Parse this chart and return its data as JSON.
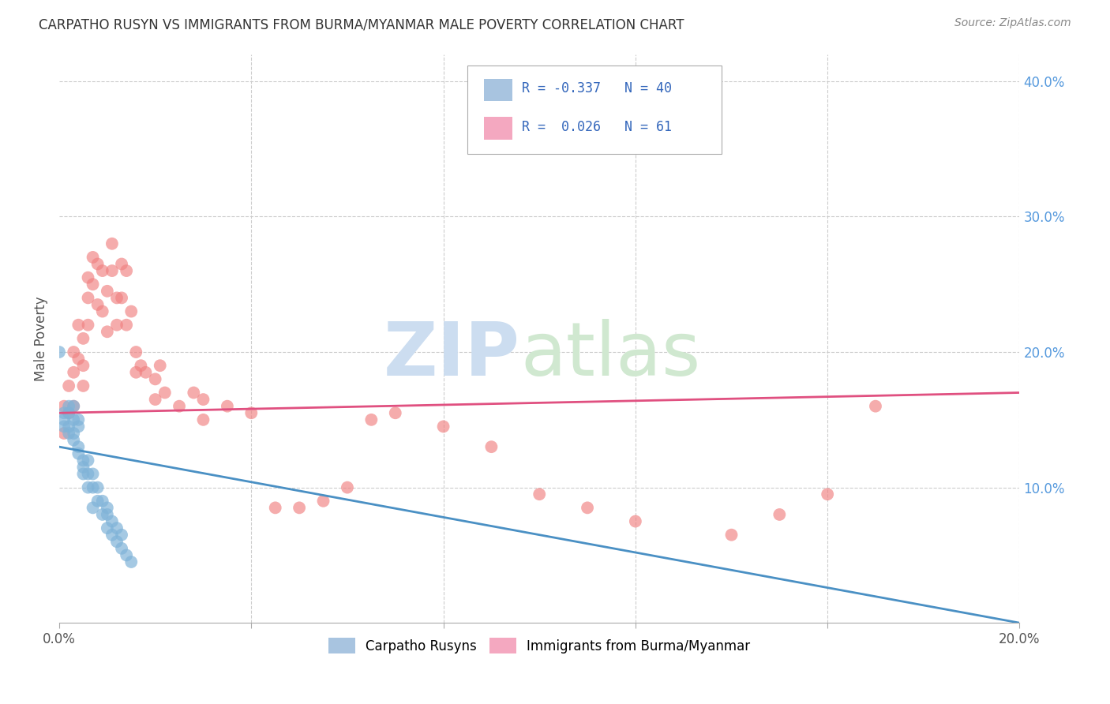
{
  "title": "CARPATHO RUSYN VS IMMIGRANTS FROM BURMA/MYANMAR MALE POVERTY CORRELATION CHART",
  "source": "Source: ZipAtlas.com",
  "ylabel": "Male Poverty",
  "x_min": 0.0,
  "x_max": 0.2,
  "y_min": 0.0,
  "y_max": 0.42,
  "legend_color1": "#a8c4e0",
  "legend_color2": "#f4a8c0",
  "scatter_color1": "#7fb3d8",
  "scatter_color2": "#f08080",
  "line_color1": "#4a90c4",
  "line_color2": "#e05080",
  "blue_x": [
    0.0,
    0.001,
    0.001,
    0.001,
    0.002,
    0.002,
    0.002,
    0.002,
    0.003,
    0.003,
    0.003,
    0.003,
    0.004,
    0.004,
    0.004,
    0.004,
    0.005,
    0.005,
    0.005,
    0.006,
    0.006,
    0.006,
    0.007,
    0.007,
    0.007,
    0.008,
    0.008,
    0.009,
    0.009,
    0.01,
    0.01,
    0.01,
    0.011,
    0.011,
    0.012,
    0.012,
    0.013,
    0.013,
    0.014,
    0.015
  ],
  "blue_y": [
    0.2,
    0.155,
    0.15,
    0.145,
    0.16,
    0.155,
    0.145,
    0.14,
    0.16,
    0.15,
    0.14,
    0.135,
    0.15,
    0.145,
    0.13,
    0.125,
    0.12,
    0.115,
    0.11,
    0.12,
    0.11,
    0.1,
    0.11,
    0.1,
    0.085,
    0.1,
    0.09,
    0.09,
    0.08,
    0.085,
    0.08,
    0.07,
    0.075,
    0.065,
    0.07,
    0.06,
    0.065,
    0.055,
    0.05,
    0.045
  ],
  "pink_x": [
    0.001,
    0.001,
    0.002,
    0.002,
    0.003,
    0.003,
    0.003,
    0.004,
    0.004,
    0.005,
    0.005,
    0.005,
    0.006,
    0.006,
    0.006,
    0.007,
    0.007,
    0.008,
    0.008,
    0.009,
    0.009,
    0.01,
    0.01,
    0.011,
    0.011,
    0.012,
    0.012,
    0.013,
    0.013,
    0.014,
    0.014,
    0.015,
    0.016,
    0.016,
    0.017,
    0.018,
    0.02,
    0.02,
    0.021,
    0.022,
    0.025,
    0.028,
    0.03,
    0.03,
    0.035,
    0.04,
    0.045,
    0.05,
    0.055,
    0.06,
    0.065,
    0.07,
    0.08,
    0.09,
    0.1,
    0.11,
    0.12,
    0.14,
    0.15,
    0.16,
    0.17
  ],
  "pink_y": [
    0.16,
    0.14,
    0.175,
    0.155,
    0.2,
    0.185,
    0.16,
    0.22,
    0.195,
    0.21,
    0.19,
    0.175,
    0.255,
    0.24,
    0.22,
    0.27,
    0.25,
    0.265,
    0.235,
    0.26,
    0.23,
    0.245,
    0.215,
    0.28,
    0.26,
    0.24,
    0.22,
    0.265,
    0.24,
    0.26,
    0.22,
    0.23,
    0.2,
    0.185,
    0.19,
    0.185,
    0.18,
    0.165,
    0.19,
    0.17,
    0.16,
    0.17,
    0.165,
    0.15,
    0.16,
    0.155,
    0.085,
    0.085,
    0.09,
    0.1,
    0.15,
    0.155,
    0.145,
    0.13,
    0.095,
    0.085,
    0.075,
    0.065,
    0.08,
    0.095,
    0.16
  ],
  "blue_line_x0": 0.0,
  "blue_line_y0": 0.13,
  "blue_line_x1": 0.2,
  "blue_line_y1": 0.0,
  "pink_line_x0": 0.0,
  "pink_line_y0": 0.155,
  "pink_line_x1": 0.2,
  "pink_line_y1": 0.17
}
